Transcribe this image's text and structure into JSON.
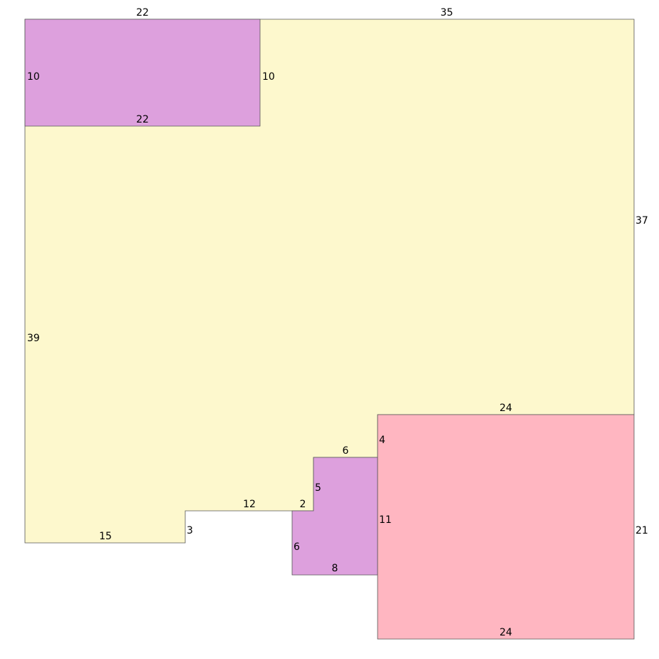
{
  "colors": {
    "background": "#ffffff",
    "yellow_region": "#fdf8cd",
    "purple_region": "#dda0dd",
    "pink_region": "#ffb6c1",
    "outline": "#555555"
  },
  "regions": [
    {
      "name": "top-left-purple-rectangle",
      "color": "#dda0dd"
    },
    {
      "name": "main-yellow-region",
      "color": "#fdf8cd"
    },
    {
      "name": "small-purple-region",
      "color": "#dda0dd"
    },
    {
      "name": "bottom-right-pink-rectangle",
      "color": "#ffb6c1"
    }
  ],
  "labels": {
    "purple_top_width": "22",
    "yellow_top_width": "35",
    "purple_left_height": "10",
    "purple_right_height": "10",
    "purple_bottom_width": "22",
    "yellow_right_height": "37",
    "yellow_left_height": "39",
    "pink_top_width": "24",
    "small_purple_top_width": "6",
    "pink_top_left_height": "4",
    "small_purple_step_height": "5",
    "yellow_step_width": "12",
    "small_purple_step_width": "2",
    "pink_left_height": "11",
    "pink_right_height": "21",
    "yellow_notch_height": "3",
    "yellow_bottom_width": "15",
    "small_purple_left_height": "6",
    "small_purple_bottom_width": "8",
    "pink_bottom_width": "24"
  }
}
